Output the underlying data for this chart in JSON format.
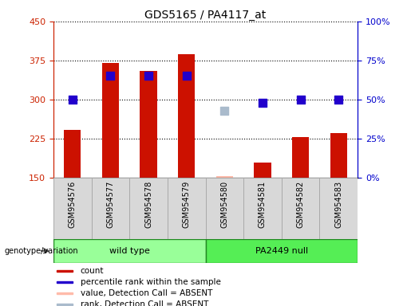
{
  "title": "GDS5165 / PA4117_at",
  "samples": [
    "GSM954576",
    "GSM954577",
    "GSM954578",
    "GSM954579",
    "GSM954580",
    "GSM954581",
    "GSM954582",
    "GSM954583"
  ],
  "groups": [
    {
      "label": "wild type",
      "indices": [
        0,
        1,
        2,
        3
      ],
      "color": "#99ff99"
    },
    {
      "label": "PA2449 null",
      "indices": [
        4,
        5,
        6,
        7
      ],
      "color": "#55ee55"
    }
  ],
  "count_values": [
    242,
    370,
    355,
    387,
    152,
    178,
    228,
    236
  ],
  "count_absent": [
    false,
    false,
    false,
    false,
    true,
    false,
    false,
    false
  ],
  "percentile_rank_values": [
    50,
    65,
    65,
    65,
    null,
    48,
    50,
    50
  ],
  "percentile_rank_absent": [
    null,
    null,
    null,
    null,
    43,
    null,
    null,
    null
  ],
  "ylim_left": [
    150,
    450
  ],
  "ylim_right": [
    0,
    100
  ],
  "yticks_left": [
    150,
    225,
    300,
    375,
    450
  ],
  "yticks_right": [
    0,
    25,
    50,
    75,
    100
  ],
  "bar_color": "#cc1100",
  "bar_absent_color": "#ffbbaa",
  "dot_color": "#2200cc",
  "dot_absent_color": "#aabbcc",
  "grid_color": "#000000",
  "sample_box_color": "#d8d8d8",
  "left_tick_color": "#cc2200",
  "right_tick_color": "#0000cc",
  "bar_width": 0.45,
  "dot_size": 55,
  "legend_items": [
    {
      "label": "count",
      "color": "#cc1100"
    },
    {
      "label": "percentile rank within the sample",
      "color": "#2200cc"
    },
    {
      "label": "value, Detection Call = ABSENT",
      "color": "#ffbbaa"
    },
    {
      "label": "rank, Detection Call = ABSENT",
      "color": "#aabbcc"
    }
  ]
}
